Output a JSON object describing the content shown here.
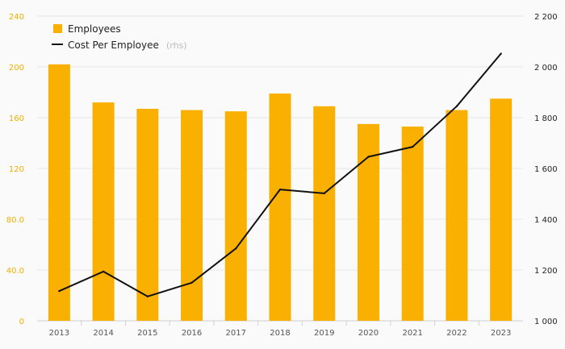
{
  "chart_data": {
    "type": "bar",
    "categories": [
      "2013",
      "2014",
      "2015",
      "2016",
      "2017",
      "2018",
      "2019",
      "2020",
      "2021",
      "2022",
      "2023"
    ],
    "series": [
      {
        "name": "Employees",
        "type": "bar",
        "axis": "left",
        "color": "#f9b000",
        "values": [
          202,
          172,
          167,
          166,
          165,
          179,
          169,
          155,
          153,
          166,
          175
        ]
      },
      {
        "name": "Cost Per Employee",
        "name_suffix": "(rhs)",
        "type": "line",
        "axis": "right",
        "color": "#111111",
        "values": [
          1117,
          1194,
          1096,
          1150,
          1285,
          1517,
          1502,
          1646,
          1685,
          1845,
          2052
        ]
      }
    ],
    "left_axis": {
      "ylim": [
        0,
        240
      ],
      "ticks": [
        0,
        40,
        80,
        120,
        160,
        200,
        240
      ],
      "tick_labels": [
        "0",
        "40.0",
        "80.0",
        "120",
        "160",
        "200",
        "240"
      ],
      "color": "#f0b000"
    },
    "right_axis": {
      "ylim": [
        1000,
        2200
      ],
      "ticks": [
        1000,
        1200,
        1400,
        1600,
        1800,
        2000,
        2200
      ],
      "tick_labels": [
        "1 000",
        "1 200",
        "1 400",
        "1 600",
        "1 800",
        "2 000",
        "2 200"
      ]
    },
    "grid": true,
    "legend_position": "top-left"
  }
}
